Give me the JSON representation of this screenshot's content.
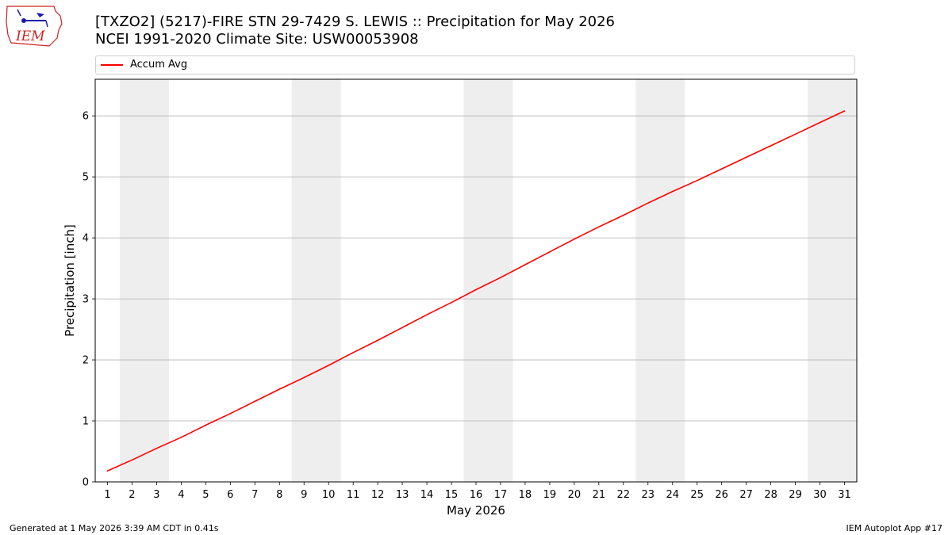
{
  "header": {
    "title_line1": "[TXZO2] (5217)-FIRE STN 29-7429 S. LEWIS :: Precipitation for May 2026",
    "title_line2": "NCEI 1991-2020 Climate Site: USW00053908",
    "logo_text": "IEM"
  },
  "footer": {
    "left": "Generated at 1 May 2026 3:39 AM CDT in 0.41s",
    "right": "IEM Autoplot App #17"
  },
  "colors": {
    "series": "#ff0000",
    "weekend_band": "#eeeeee",
    "grid": "#b0b0b0",
    "logo": "#cc2222"
  },
  "chart_data": {
    "type": "line",
    "xlabel": "May 2026",
    "ylabel": "Precipitation [inch]",
    "xlim": [
      0.5,
      31.5
    ],
    "ylim": [
      0,
      6.6
    ],
    "x": [
      1,
      2,
      3,
      4,
      5,
      6,
      7,
      8,
      9,
      10,
      11,
      12,
      13,
      14,
      15,
      16,
      17,
      18,
      19,
      20,
      21,
      22,
      23,
      24,
      25,
      26,
      27,
      28,
      29,
      30,
      31
    ],
    "x_ticks": [
      "1",
      "2",
      "3",
      "4",
      "5",
      "6",
      "7",
      "8",
      "9",
      "10",
      "11",
      "12",
      "13",
      "14",
      "15",
      "16",
      "17",
      "18",
      "19",
      "20",
      "21",
      "22",
      "23",
      "24",
      "25",
      "26",
      "27",
      "28",
      "29",
      "30",
      "31"
    ],
    "y_ticks": [
      "0",
      "1",
      "2",
      "3",
      "4",
      "5",
      "6"
    ],
    "grid": "horizontal",
    "legend_placement": "top",
    "shaded_day_ranges": [
      [
        1.5,
        3.5
      ],
      [
        8.5,
        10.5
      ],
      [
        15.5,
        17.5
      ],
      [
        22.5,
        24.5
      ],
      [
        29.5,
        31.5
      ]
    ],
    "series": [
      {
        "name": "Accum Avg",
        "values": [
          0.18,
          0.36,
          0.55,
          0.73,
          0.93,
          1.12,
          1.32,
          1.52,
          1.71,
          1.91,
          2.12,
          2.32,
          2.53,
          2.74,
          2.94,
          3.15,
          3.35,
          3.56,
          3.77,
          3.98,
          4.18,
          4.37,
          4.57,
          4.76,
          4.94,
          5.13,
          5.32,
          5.51,
          5.7,
          5.89,
          6.08
        ]
      }
    ]
  }
}
